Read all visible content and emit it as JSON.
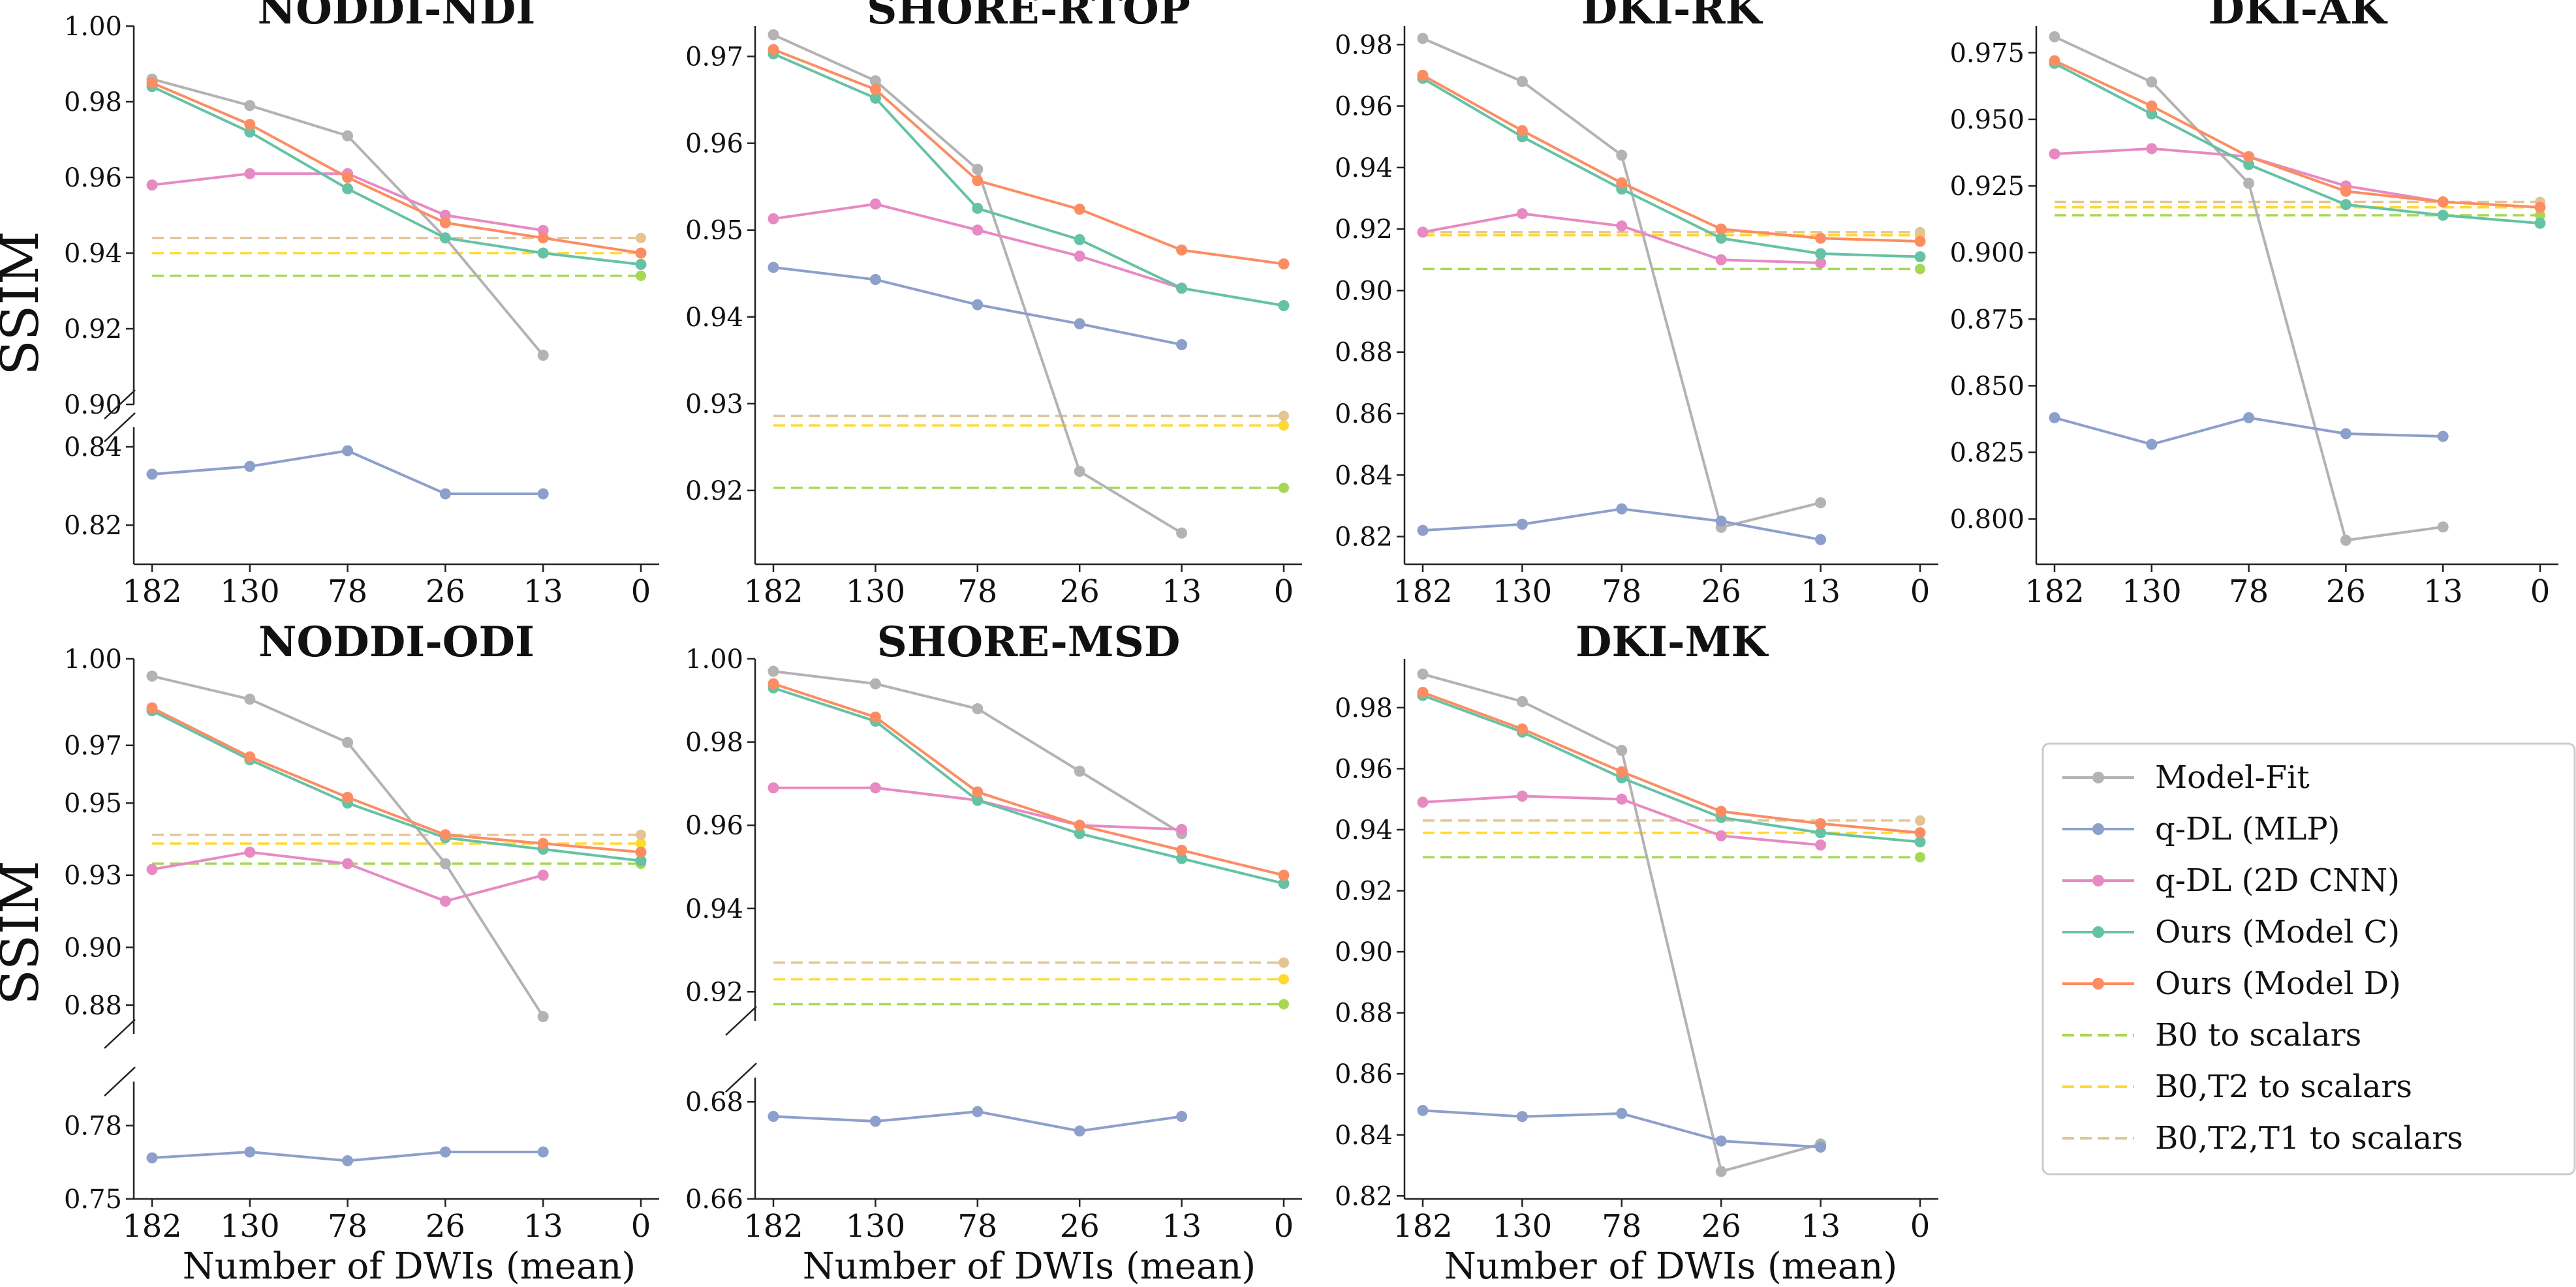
{
  "figure": {
    "ylabel": "SSIM",
    "xlabel": "Number of DWIs (mean)",
    "colors": {
      "Model-Fit": "#b3b3b3",
      "q-DL (MLP)": "#8da0cb",
      "q-DL (2D CNN)": "#e78ac3",
      "Ours (Model C)": "#66c2a5",
      "Ours (Model D)": "#fc8d62",
      "B0 to scalars": "#a6d854",
      "B0,T2 to scalars": "#ffd92f",
      "B0,T2,T1 to scalars": "#e5c494"
    },
    "legend": {
      "placement": "right of bottom row",
      "entries": [
        {
          "label": "Model-Fit",
          "style": "line-marker",
          "color": "#b3b3b3"
        },
        {
          "label": "q-DL (MLP)",
          "style": "line-marker",
          "color": "#8da0cb"
        },
        {
          "label": "q-DL (2D CNN)",
          "style": "line-marker",
          "color": "#e78ac3"
        },
        {
          "label": "Ours (Model C)",
          "style": "line-marker",
          "color": "#66c2a5"
        },
        {
          "label": "Ours (Model D)",
          "style": "line-marker",
          "color": "#fc8d62"
        },
        {
          "label": "B0 to scalars",
          "style": "dashed",
          "color": "#a6d854"
        },
        {
          "label": "B0,T2 to scalars",
          "style": "dashed",
          "color": "#ffd92f"
        },
        {
          "label": "B0,T2,T1 to scalars",
          "style": "dashed",
          "color": "#e5c494"
        }
      ]
    }
  },
  "chart_data": [
    {
      "type": "line",
      "title": "NODDI-NDI",
      "x": [
        "182",
        "130",
        "78",
        "26",
        "13",
        "0"
      ],
      "broken_axis": true,
      "ylim_upper": [
        0.9,
        1.0
      ],
      "ylim_lower": [
        0.81,
        0.845
      ],
      "yticks_upper": [
        "0.90",
        "0.92",
        "0.94",
        "0.96",
        "0.98",
        "1.00"
      ],
      "yticks_lower": [
        "0.82",
        "0.84"
      ],
      "series": [
        {
          "name": "Model-Fit",
          "values": [
            0.986,
            0.979,
            0.971,
            0.944,
            0.913,
            null
          ]
        },
        {
          "name": "q-DL (MLP)",
          "values": [
            0.833,
            0.835,
            0.839,
            0.828,
            0.828,
            null
          ]
        },
        {
          "name": "q-DL (2D CNN)",
          "values": [
            0.958,
            0.961,
            0.961,
            0.95,
            0.946,
            null
          ]
        },
        {
          "name": "Ours (Model C)",
          "values": [
            0.984,
            0.972,
            0.957,
            0.944,
            0.94,
            0.937
          ]
        },
        {
          "name": "Ours (Model D)",
          "values": [
            0.985,
            0.974,
            0.96,
            0.948,
            0.944,
            0.94
          ]
        },
        {
          "name": "B0 to scalars",
          "constant": 0.934
        },
        {
          "name": "B0,T2 to scalars",
          "constant": 0.94
        },
        {
          "name": "B0,T2,T1 to scalars",
          "constant": 0.944
        }
      ]
    },
    {
      "type": "line",
      "title": "SHORE-RTOP",
      "x": [
        "182",
        "130",
        "78",
        "26",
        "13",
        "0"
      ],
      "broken_axis": false,
      "ylim": [
        0.9115,
        0.9735
      ],
      "yticks": [
        "0.92",
        "0.93",
        "0.94",
        "0.95",
        "0.96",
        "0.97"
      ],
      "series": [
        {
          "name": "Model-Fit",
          "values": [
            0.9725,
            0.9672,
            0.957,
            0.9222,
            0.9151,
            null
          ]
        },
        {
          "name": "q-DL (MLP)",
          "values": [
            0.9457,
            0.9443,
            0.9414,
            0.9392,
            0.9368,
            null
          ]
        },
        {
          "name": "q-DL (2D CNN)",
          "values": [
            0.9513,
            0.953,
            0.95,
            0.947,
            0.9433,
            null
          ]
        },
        {
          "name": "Ours (Model C)",
          "values": [
            0.9703,
            0.9652,
            0.9525,
            0.9489,
            0.9433,
            0.9413
          ]
        },
        {
          "name": "Ours (Model D)",
          "values": [
            0.9708,
            0.9662,
            0.9557,
            0.9524,
            0.9477,
            0.9461
          ]
        },
        {
          "name": "B0 to scalars",
          "constant": 0.9203
        },
        {
          "name": "B0,T2 to scalars",
          "constant": 0.9275
        },
        {
          "name": "B0,T2,T1 to scalars",
          "constant": 0.9286
        }
      ]
    },
    {
      "type": "line",
      "title": "DKI-RK",
      "x": [
        "182",
        "130",
        "78",
        "26",
        "13",
        "0"
      ],
      "broken_axis": false,
      "ylim": [
        0.811,
        0.986
      ],
      "yticks": [
        "0.82",
        "0.84",
        "0.86",
        "0.88",
        "0.90",
        "0.92",
        "0.94",
        "0.96",
        "0.98"
      ],
      "series": [
        {
          "name": "Model-Fit",
          "values": [
            0.982,
            0.968,
            0.944,
            0.823,
            0.831,
            null
          ]
        },
        {
          "name": "q-DL (MLP)",
          "values": [
            0.822,
            0.824,
            0.829,
            0.825,
            0.819,
            null
          ]
        },
        {
          "name": "q-DL (2D CNN)",
          "values": [
            0.919,
            0.925,
            0.921,
            0.91,
            0.909,
            null
          ]
        },
        {
          "name": "Ours (Model C)",
          "values": [
            0.969,
            0.95,
            0.933,
            0.917,
            0.912,
            0.911
          ]
        },
        {
          "name": "Ours (Model D)",
          "values": [
            0.97,
            0.952,
            0.935,
            0.92,
            0.917,
            0.916
          ]
        },
        {
          "name": "B0 to scalars",
          "constant": 0.907
        },
        {
          "name": "B0,T2 to scalars",
          "constant": 0.918
        },
        {
          "name": "B0,T2,T1 to scalars",
          "constant": 0.919
        }
      ]
    },
    {
      "type": "line",
      "title": "DKI-AK",
      "x": [
        "182",
        "130",
        "78",
        "26",
        "13",
        "0"
      ],
      "broken_axis": false,
      "ylim": [
        0.783,
        0.985
      ],
      "yticks": [
        "0.800",
        "0.825",
        "0.850",
        "0.875",
        "0.900",
        "0.925",
        "0.950",
        "0.975"
      ],
      "series": [
        {
          "name": "Model-Fit",
          "values": [
            0.981,
            0.964,
            0.926,
            0.792,
            0.797,
            null
          ]
        },
        {
          "name": "q-DL (MLP)",
          "values": [
            0.838,
            0.828,
            0.838,
            0.832,
            0.831,
            null
          ]
        },
        {
          "name": "q-DL (2D CNN)",
          "values": [
            0.937,
            0.939,
            0.936,
            0.925,
            0.919,
            null
          ]
        },
        {
          "name": "Ours (Model C)",
          "values": [
            0.971,
            0.952,
            0.933,
            0.918,
            0.914,
            0.911
          ]
        },
        {
          "name": "Ours (Model D)",
          "values": [
            0.972,
            0.955,
            0.936,
            0.923,
            0.919,
            0.917
          ]
        },
        {
          "name": "B0 to scalars",
          "constant": 0.914
        },
        {
          "name": "B0,T2 to scalars",
          "constant": 0.917
        },
        {
          "name": "B0,T2,T1 to scalars",
          "constant": 0.919
        }
      ]
    },
    {
      "type": "line",
      "title": "NODDI-ODI",
      "x": [
        "182",
        "130",
        "78",
        "26",
        "13",
        "0"
      ],
      "broken_axis": true,
      "ylim_upper": [
        0.87,
        1.0
      ],
      "ylim_lower": [
        0.75,
        0.79
      ],
      "yticks_upper": [
        "0.88",
        "0.90",
        "0.93",
        "0.95",
        "0.97",
        "1.00"
      ],
      "yticks_upper_values": [
        0.88,
        0.9,
        0.925,
        0.95,
        0.97,
        1.0
      ],
      "yticks_lower": [
        "0.75",
        "0.78"
      ],
      "yticks_lower_values": [
        0.75,
        0.775
      ],
      "series": [
        {
          "name": "Model-Fit",
          "values": [
            0.994,
            0.986,
            0.971,
            0.929,
            0.876,
            null
          ]
        },
        {
          "name": "q-DL (MLP)",
          "values": [
            0.764,
            0.766,
            0.763,
            0.766,
            0.766,
            null
          ]
        },
        {
          "name": "q-DL (2D CNN)",
          "values": [
            0.927,
            0.933,
            0.929,
            0.916,
            0.925,
            null
          ]
        },
        {
          "name": "Ours (Model C)",
          "values": [
            0.982,
            0.965,
            0.95,
            0.938,
            0.934,
            0.93
          ]
        },
        {
          "name": "Ours (Model D)",
          "values": [
            0.983,
            0.966,
            0.952,
            0.939,
            0.936,
            0.933
          ]
        },
        {
          "name": "B0 to scalars",
          "constant": 0.929
        },
        {
          "name": "B0,T2 to scalars",
          "constant": 0.936
        },
        {
          "name": "B0,T2,T1 to scalars",
          "constant": 0.939
        }
      ]
    },
    {
      "type": "line",
      "title": "SHORE-MSD",
      "x": [
        "182",
        "130",
        "78",
        "26",
        "13",
        "0"
      ],
      "broken_axis": true,
      "ylim_upper": [
        0.913,
        1.0
      ],
      "ylim_lower": [
        0.66,
        0.685
      ],
      "yticks_upper": [
        "0.92",
        "0.94",
        "0.96",
        "0.98",
        "1.00"
      ],
      "yticks_lower": [
        "0.66",
        "0.68"
      ],
      "series": [
        {
          "name": "Model-Fit",
          "values": [
            0.997,
            0.994,
            0.988,
            0.973,
            0.958,
            null
          ]
        },
        {
          "name": "q-DL (MLP)",
          "values": [
            0.677,
            0.676,
            0.678,
            0.674,
            0.677,
            null
          ]
        },
        {
          "name": "q-DL (2D CNN)",
          "values": [
            0.969,
            0.969,
            0.966,
            0.96,
            0.959,
            null
          ]
        },
        {
          "name": "Ours (Model C)",
          "values": [
            0.993,
            0.985,
            0.966,
            0.958,
            0.952,
            0.946
          ]
        },
        {
          "name": "Ours (Model D)",
          "values": [
            0.994,
            0.986,
            0.968,
            0.96,
            0.954,
            0.948
          ]
        },
        {
          "name": "B0 to scalars",
          "constant": 0.917
        },
        {
          "name": "B0,T2 to scalars",
          "constant": 0.923
        },
        {
          "name": "B0,T2,T1 to scalars",
          "constant": 0.927
        }
      ]
    },
    {
      "type": "line",
      "title": "DKI-MK",
      "x": [
        "182",
        "130",
        "78",
        "26",
        "13",
        "0"
      ],
      "broken_axis": false,
      "ylim": [
        0.819,
        0.996
      ],
      "yticks": [
        "0.82",
        "0.84",
        "0.86",
        "0.88",
        "0.90",
        "0.92",
        "0.94",
        "0.96",
        "0.98"
      ],
      "series": [
        {
          "name": "Model-Fit",
          "values": [
            0.991,
            0.982,
            0.966,
            0.828,
            0.837,
            null
          ]
        },
        {
          "name": "q-DL (MLP)",
          "values": [
            0.848,
            0.846,
            0.847,
            0.838,
            0.836,
            null
          ]
        },
        {
          "name": "q-DL (2D CNN)",
          "values": [
            0.949,
            0.951,
            0.95,
            0.938,
            0.935,
            null
          ]
        },
        {
          "name": "Ours (Model C)",
          "values": [
            0.984,
            0.972,
            0.957,
            0.944,
            0.939,
            0.936
          ]
        },
        {
          "name": "Ours (Model D)",
          "values": [
            0.985,
            0.973,
            0.959,
            0.946,
            0.942,
            0.939
          ]
        },
        {
          "name": "B0 to scalars",
          "constant": 0.931
        },
        {
          "name": "B0,T2 to scalars",
          "constant": 0.939
        },
        {
          "name": "B0,T2,T1 to scalars",
          "constant": 0.943
        }
      ]
    }
  ]
}
